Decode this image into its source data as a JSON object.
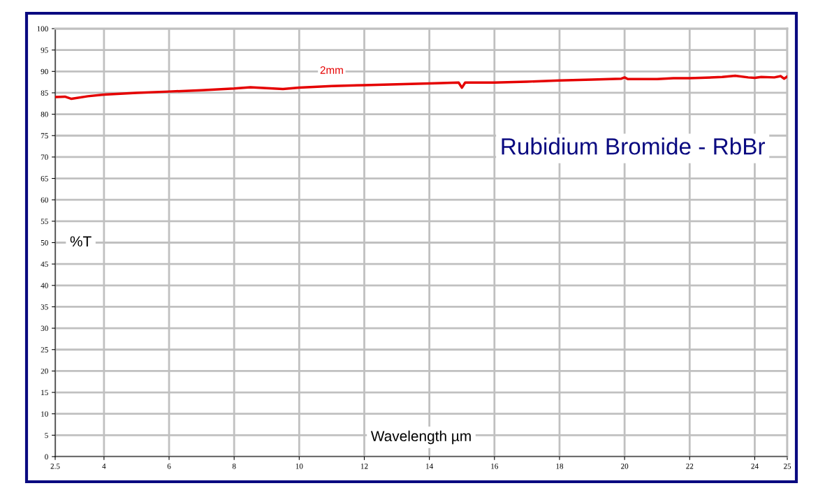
{
  "chart_data": {
    "type": "line",
    "title": "Rubidium Bromide - RbBr",
    "xlabel": "Wavelength µm",
    "ylabel": "%T",
    "series": [
      {
        "name": "2mm",
        "color": "#e50000",
        "x": [
          2.5,
          2.8,
          3.0,
          3.5,
          4,
          5,
          6,
          7,
          8,
          8.5,
          9,
          9.5,
          10,
          11,
          12,
          13,
          14,
          14.9,
          15.0,
          15.1,
          16,
          17,
          18,
          19,
          19.9,
          20,
          20.1,
          21,
          21.5,
          22,
          23,
          23.4,
          23.8,
          24,
          24.2,
          24.6,
          24.8,
          24.9,
          25
        ],
        "values": [
          84.0,
          84.1,
          83.6,
          84.2,
          84.6,
          85.0,
          85.3,
          85.6,
          86.0,
          86.3,
          86.1,
          85.9,
          86.2,
          86.6,
          86.8,
          87.0,
          87.2,
          87.4,
          86.2,
          87.4,
          87.4,
          87.6,
          87.9,
          88.1,
          88.3,
          88.6,
          88.2,
          88.2,
          88.4,
          88.4,
          88.7,
          89.0,
          88.6,
          88.5,
          88.7,
          88.6,
          88.9,
          88.3,
          88.8
        ]
      }
    ],
    "xlim": [
      2.5,
      25
    ],
    "xticks": [
      2.5,
      4,
      6,
      8,
      10,
      12,
      14,
      16,
      18,
      20,
      22,
      24,
      25
    ],
    "ylim": [
      0,
      100
    ],
    "yticks": [
      0,
      5,
      10,
      15,
      20,
      25,
      30,
      35,
      40,
      45,
      50,
      55,
      60,
      65,
      70,
      75,
      80,
      85,
      90,
      95,
      100
    ],
    "grid": true,
    "legend": false,
    "marker": "none",
    "line_style": "solid"
  }
}
